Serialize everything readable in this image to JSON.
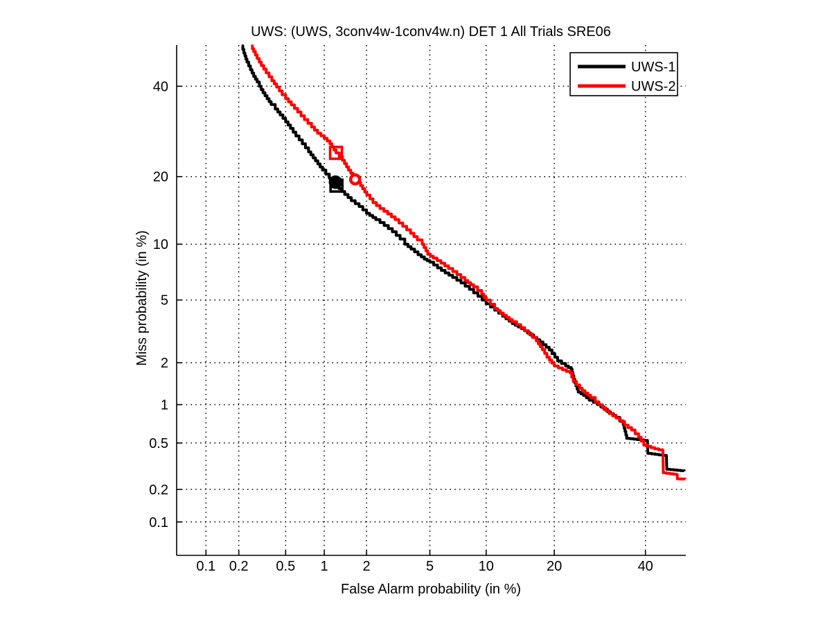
{
  "chart_data": {
    "type": "line",
    "subtype": "DET-curve",
    "title": "UWS: (UWS, 3conv4w-1conv4w.n) DET 1 All Trials SRE06",
    "xlabel": "False Alarm probability (in %)",
    "ylabel": "Miss probability (in %)",
    "axis_scale": "probit (normal deviate)",
    "grid": "dotted",
    "legend_position": "top-right",
    "xlim_percent": [
      0.052,
      50.3
    ],
    "ylim_percent": [
      0.047,
      50.6
    ],
    "xticks": [
      0.1,
      0.2,
      0.5,
      1,
      2,
      5,
      10,
      20,
      40
    ],
    "yticks": [
      0.1,
      0.2,
      0.5,
      1,
      2,
      5,
      10,
      20,
      40
    ],
    "xtick_labels": [
      "0.1",
      "0.2",
      "0.5",
      "1",
      "2",
      "5",
      "10",
      "20",
      "40"
    ],
    "ytick_labels": [
      "0.1",
      "0.2",
      "0.5",
      "1",
      "2",
      "5",
      "10",
      "20",
      "40"
    ],
    "series": [
      {
        "name": "UWS-1",
        "color": "#000000",
        "line_width": 4,
        "points": [
          [
            0.212,
            50.4
          ],
          [
            0.222,
            48.5
          ],
          [
            0.236,
            46.2
          ],
          [
            0.253,
            44.2
          ],
          [
            0.27,
            42.5
          ],
          [
            0.289,
            41.1
          ],
          [
            0.302,
            40.0
          ],
          [
            0.324,
            38.4
          ],
          [
            0.351,
            36.9
          ],
          [
            0.38,
            35.5
          ],
          [
            0.411,
            34.4
          ],
          [
            0.451,
            33.0
          ],
          [
            0.5,
            31.4
          ],
          [
            0.547,
            29.9
          ],
          [
            0.604,
            28.2
          ],
          [
            0.679,
            26.5
          ],
          [
            0.759,
            24.8
          ],
          [
            0.858,
            23.0
          ],
          [
            0.969,
            21.2
          ],
          [
            1.09,
            19.7
          ],
          [
            1.21,
            19.0
          ],
          [
            1.28,
            17.9
          ],
          [
            1.41,
            16.9
          ],
          [
            1.57,
            15.9
          ],
          [
            1.78,
            15.0
          ],
          [
            2.0,
            14.0
          ],
          [
            2.31,
            13.1
          ],
          [
            2.62,
            12.3
          ],
          [
            2.96,
            11.5
          ],
          [
            3.31,
            10.6
          ],
          [
            3.54,
            10.0
          ],
          [
            3.87,
            9.45
          ],
          [
            4.26,
            8.85
          ],
          [
            4.64,
            8.4
          ],
          [
            5.0,
            8.1
          ],
          [
            5.53,
            7.55
          ],
          [
            6.1,
            7.1
          ],
          [
            6.71,
            6.7
          ],
          [
            7.44,
            6.25
          ],
          [
            8.23,
            5.75
          ],
          [
            9.1,
            5.25
          ],
          [
            10.0,
            4.75
          ],
          [
            11.0,
            4.35
          ],
          [
            12.0,
            4.0
          ],
          [
            13.3,
            3.6
          ],
          [
            14.6,
            3.35
          ],
          [
            16.0,
            3.05
          ],
          [
            17.5,
            2.75
          ],
          [
            19.1,
            2.44
          ],
          [
            20.6,
            2.06
          ],
          [
            22.1,
            1.9
          ],
          [
            23.2,
            1.81
          ],
          [
            23.9,
            1.45
          ],
          [
            24.6,
            1.24
          ],
          [
            25.7,
            1.17
          ],
          [
            26.9,
            1.08
          ],
          [
            28.7,
            1.0
          ],
          [
            30.9,
            0.885
          ],
          [
            32.9,
            0.8
          ],
          [
            34.6,
            0.7
          ],
          [
            35.4,
            0.545
          ],
          [
            40.5,
            0.52
          ],
          [
            40.6,
            0.41
          ],
          [
            45.3,
            0.39
          ],
          [
            45.4,
            0.3
          ],
          [
            49.9,
            0.29
          ]
        ]
      },
      {
        "name": "UWS-2",
        "color": "#ff0000",
        "line_width": 4,
        "points": [
          [
            0.256,
            50.4
          ],
          [
            0.27,
            48.9
          ],
          [
            0.289,
            47.1
          ],
          [
            0.314,
            45.3
          ],
          [
            0.345,
            43.4
          ],
          [
            0.385,
            41.4
          ],
          [
            0.422,
            39.8
          ],
          [
            0.468,
            37.9
          ],
          [
            0.5,
            36.9
          ],
          [
            0.555,
            35.4
          ],
          [
            0.623,
            33.7
          ],
          [
            0.705,
            31.9
          ],
          [
            0.8,
            30.2
          ],
          [
            0.89,
            28.8
          ],
          [
            1.0,
            27.7
          ],
          [
            1.1,
            26.5
          ],
          [
            1.22,
            24.6
          ],
          [
            1.36,
            23.1
          ],
          [
            1.5,
            21.2
          ],
          [
            1.67,
            19.5
          ],
          [
            1.82,
            18.4
          ],
          [
            2.01,
            16.8
          ],
          [
            2.21,
            15.6
          ],
          [
            2.46,
            14.7
          ],
          [
            2.76,
            13.9
          ],
          [
            3.08,
            13.1
          ],
          [
            3.44,
            12.2
          ],
          [
            3.84,
            11.3
          ],
          [
            4.22,
            10.5
          ],
          [
            4.51,
            10.0
          ],
          [
            4.86,
            8.9
          ],
          [
            5.23,
            8.5
          ],
          [
            5.78,
            8.0
          ],
          [
            6.37,
            7.5
          ],
          [
            7.07,
            6.95
          ],
          [
            7.8,
            6.45
          ],
          [
            8.65,
            5.95
          ],
          [
            9.5,
            5.4
          ],
          [
            10.0,
            5.0
          ],
          [
            11.0,
            4.45
          ],
          [
            12.1,
            4.05
          ],
          [
            13.3,
            3.7
          ],
          [
            14.5,
            3.4
          ],
          [
            15.7,
            3.1
          ],
          [
            16.9,
            2.8
          ],
          [
            17.9,
            2.45
          ],
          [
            18.7,
            2.18
          ],
          [
            20.0,
            1.9
          ],
          [
            21.5,
            1.79
          ],
          [
            23.0,
            1.7
          ],
          [
            23.6,
            1.48
          ],
          [
            24.9,
            1.32
          ],
          [
            26.0,
            1.22
          ],
          [
            27.2,
            1.13
          ],
          [
            28.2,
            1.05
          ],
          [
            29.8,
            0.945
          ],
          [
            31.3,
            0.855
          ],
          [
            32.9,
            0.79
          ],
          [
            34.9,
            0.695
          ],
          [
            36.6,
            0.635
          ],
          [
            38.3,
            0.555
          ],
          [
            39.6,
            0.48
          ],
          [
            42.3,
            0.447
          ],
          [
            44.4,
            0.43
          ],
          [
            44.5,
            0.28
          ],
          [
            47.9,
            0.27
          ],
          [
            48.1,
            0.248
          ],
          [
            50.1,
            0.246
          ]
        ]
      }
    ],
    "markers": [
      {
        "series": "UWS-1",
        "shape": "circle",
        "filled": true,
        "color": "#000000",
        "fa": 1.21,
        "miss": 19.0
      },
      {
        "series": "UWS-1",
        "shape": "square",
        "filled": false,
        "color": "#000000",
        "fa": 1.23,
        "miss": 18.4
      },
      {
        "series": "UWS-2",
        "shape": "square",
        "filled": false,
        "color": "#ff0000",
        "fa": 1.22,
        "miss": 24.6
      },
      {
        "series": "UWS-2",
        "shape": "circle",
        "filled": false,
        "color": "#ff0000",
        "fa": 1.67,
        "miss": 19.5
      }
    ]
  }
}
